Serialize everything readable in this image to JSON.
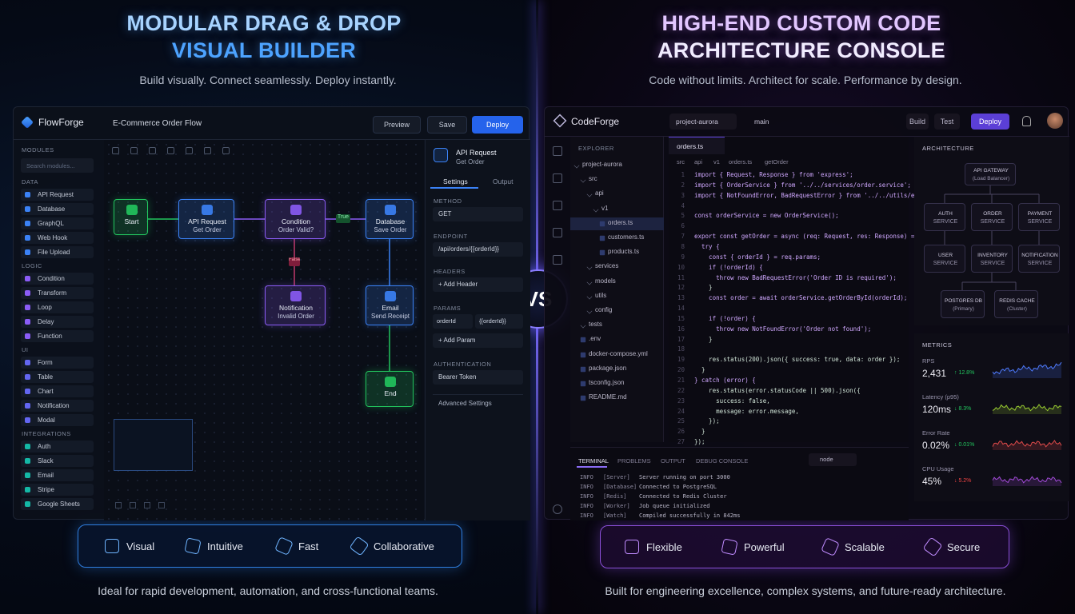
{
  "vs": "VS",
  "left": {
    "title": [
      "MODULAR DRAG & DROP",
      "VISUAL BUILDER"
    ],
    "subtitle": "Build visually. Connect seamlessly. Deploy instantly.",
    "app": {
      "logo": "FlowForge",
      "doc": "E-Commerce Order Flow",
      "buttons": [
        "Preview",
        "Save",
        "Deploy"
      ],
      "sidebar": {
        "header": "MODULES",
        "search": "Search modules...",
        "groups": [
          {
            "name": "DATA",
            "items": [
              "API Request",
              "Database",
              "GraphQL",
              "Web Hook",
              "File Upload"
            ]
          },
          {
            "name": "LOGIC",
            "items": [
              "Condition",
              "Transform",
              "Loop",
              "Delay",
              "Function"
            ]
          },
          {
            "name": "UI",
            "items": [
              "Form",
              "Table",
              "Chart",
              "Notification",
              "Modal"
            ]
          },
          {
            "name": "INTEGRATIONS",
            "items": [
              "Auth",
              "Slack",
              "Email",
              "Stripe",
              "Google Sheets"
            ]
          }
        ]
      },
      "nodes": [
        {
          "title": "Start",
          "color": "#22c55e"
        },
        {
          "title": "API Request",
          "sub": "Get Order",
          "color": "#3b82f6"
        },
        {
          "title": "Condition",
          "sub": "Order Valid?",
          "color": "#8b5cf6"
        },
        {
          "title": "Database",
          "sub": "Save Order",
          "color": "#3b82f6"
        },
        {
          "title": "Notification",
          "sub": "Invalid Order",
          "color": "#8b5cf6"
        },
        {
          "title": "Email",
          "sub": "Send Receipt",
          "color": "#3b82f6"
        },
        {
          "title": "End",
          "color": "#22c55e"
        }
      ],
      "edge_labels": [
        "True",
        "False"
      ],
      "panel": {
        "title": "API Request",
        "sub": "Get Order",
        "tabs": [
          "Settings",
          "Output"
        ],
        "method_label": "METHOD",
        "method": "GET",
        "endpoint_label": "ENDPOINT",
        "endpoint": "/api/orders/{{orderId}}",
        "headers_label": "HEADERS",
        "add_header": "+ Add Header",
        "params_label": "PARAMS",
        "param": [
          "orderId",
          "{{orderId}}"
        ],
        "add_param": "+ Add Param",
        "auth_label": "AUTHENTICATION",
        "auth": "Bearer Token",
        "advanced": "Advanced Settings"
      }
    },
    "features": [
      "Visual",
      "Intuitive",
      "Fast",
      "Collaborative"
    ],
    "footer": "Ideal for rapid development, automation, and cross-functional teams."
  },
  "right": {
    "title": [
      "HIGH-END CUSTOM CODE",
      "ARCHITECTURE CONSOLE"
    ],
    "subtitle": "Code without limits. Architect for scale. Performance by design.",
    "app": {
      "logo": "CodeForge",
      "project": "project-aurora",
      "branch": "main",
      "buttons": [
        "Build",
        "Test",
        "Deploy"
      ],
      "explorer": {
        "header": "EXPLORER",
        "tree": [
          {
            "name": "project-aurora",
            "depth": 0,
            "kind": "folder"
          },
          {
            "name": "src",
            "depth": 1,
            "kind": "folder"
          },
          {
            "name": "api",
            "depth": 2,
            "kind": "folder"
          },
          {
            "name": "v1",
            "depth": 3,
            "kind": "folder"
          },
          {
            "name": "orders.ts",
            "depth": 4,
            "kind": "file"
          },
          {
            "name": "customers.ts",
            "depth": 4,
            "kind": "file"
          },
          {
            "name": "products.ts",
            "depth": 4,
            "kind": "file"
          },
          {
            "name": "services",
            "depth": 2,
            "kind": "folder"
          },
          {
            "name": "models",
            "depth": 2,
            "kind": "folder"
          },
          {
            "name": "utils",
            "depth": 2,
            "kind": "folder"
          },
          {
            "name": "config",
            "depth": 2,
            "kind": "folder"
          },
          {
            "name": "tests",
            "depth": 1,
            "kind": "folder"
          },
          {
            "name": ".env",
            "depth": 1,
            "kind": "file"
          },
          {
            "name": "docker-compose.yml",
            "depth": 1,
            "kind": "file"
          },
          {
            "name": "package.json",
            "depth": 1,
            "kind": "file"
          },
          {
            "name": "tsconfig.json",
            "depth": 1,
            "kind": "file"
          },
          {
            "name": "README.md",
            "depth": 1,
            "kind": "file"
          }
        ]
      },
      "editor": {
        "tab": "orders.ts",
        "breadcrumb": [
          "src",
          "api",
          "v1",
          "orders.ts",
          "getOrder"
        ],
        "lines": [
          {
            "n": 1,
            "text": "import { Request, Response } from 'express';"
          },
          {
            "n": 2,
            "text": "import { OrderService } from '../../services/order.service';"
          },
          {
            "n": 3,
            "text": "import { NotFoundError, BadRequestError } from '../../utils/errors';"
          },
          {
            "n": 4
          },
          {
            "n": 5,
            "text": "const orderService = new OrderService();"
          },
          {
            "n": 6
          },
          {
            "n": 7,
            "text": "export const getOrder = async (req: Request, res: Response) => {"
          },
          {
            "n": 8,
            "text": "  try {"
          },
          {
            "n": 9,
            "text": "    const { orderId } = req.params;"
          },
          {
            "n": 10,
            "text": "    if (!orderId) {"
          },
          {
            "n": 11,
            "text": "      throw new BadRequestError('Order ID is required');"
          },
          {
            "n": 12,
            "text": "    }"
          },
          {
            "n": 13,
            "text": "    const order = await orderService.getOrderById(orderId);"
          },
          {
            "n": 14
          },
          {
            "n": 15,
            "text": "    if (!order) {"
          },
          {
            "n": 16,
            "text": "      throw new NotFoundError('Order not found');"
          },
          {
            "n": 17,
            "text": "    }"
          },
          {
            "n": 18
          },
          {
            "n": 19,
            "text": "    res.status(200).json({ success: true, data: order });"
          },
          {
            "n": 20,
            "text": "  }"
          },
          {
            "n": 21,
            "text": "} catch (error) {"
          },
          {
            "n": 22,
            "text": "    res.status(error.statusCode || 500).json({"
          },
          {
            "n": 23,
            "text": "      success: false,"
          },
          {
            "n": 24,
            "text": "      message: error.message,"
          },
          {
            "n": 25,
            "text": "    });"
          },
          {
            "n": 26,
            "text": "  }"
          },
          {
            "n": 27,
            "text": "});"
          }
        ]
      },
      "terminal": {
        "tabs": [
          "TERMINAL",
          "PROBLEMS",
          "OUTPUT",
          "DEBUG CONSOLE"
        ],
        "shell": "node",
        "lines": [
          [
            "INFO",
            "[Server]",
            "Server running on port 3000"
          ],
          [
            "INFO",
            "[Database]",
            "Connected to PostgreSQL"
          ],
          [
            "INFO",
            "[Redis]",
            "Connected to Redis Cluster"
          ],
          [
            "INFO",
            "[Worker]",
            "Job queue initialized"
          ],
          [
            "INFO",
            "[Watch]",
            "Compiled successfully in 842ms"
          ]
        ]
      },
      "architecture": {
        "header": "ARCHITECTURE",
        "nodes": [
          [
            "API GATEWAY",
            "(Load Balancer)"
          ],
          [
            "AUTH",
            "SERVICE"
          ],
          [
            "ORDER",
            "SERVICE"
          ],
          [
            "PAYMENT",
            "SERVICE"
          ],
          [
            "USER",
            "SERVICE"
          ],
          [
            "INVENTORY",
            "SERVICE"
          ],
          [
            "NOTIFICATION",
            "SERVICE"
          ],
          [
            "POSTGRES DB",
            "(Primary)"
          ],
          [
            "REDIS CACHE",
            "(Cluster)"
          ]
        ]
      },
      "metrics": {
        "header": "METRICS",
        "items": [
          {
            "name": "RPS",
            "value": "2,431",
            "change": "↑ 12.8%",
            "color": "#22c55e"
          },
          {
            "name": "Latency (p95)",
            "value": "120ms",
            "change": "↓ 8.3%",
            "color": "#22c55e"
          },
          {
            "name": "Error Rate",
            "value": "0.02%",
            "change": "↓ 0.01%",
            "color": "#22c55e"
          },
          {
            "name": "CPU Usage",
            "value": "45%",
            "change": "↓ 5.2%",
            "color": "#ef4444"
          }
        ]
      }
    },
    "features": [
      "Flexible",
      "Powerful",
      "Scalable",
      "Secure"
    ],
    "footer": "Built for engineering excellence, complex systems, and future-ready architecture."
  }
}
